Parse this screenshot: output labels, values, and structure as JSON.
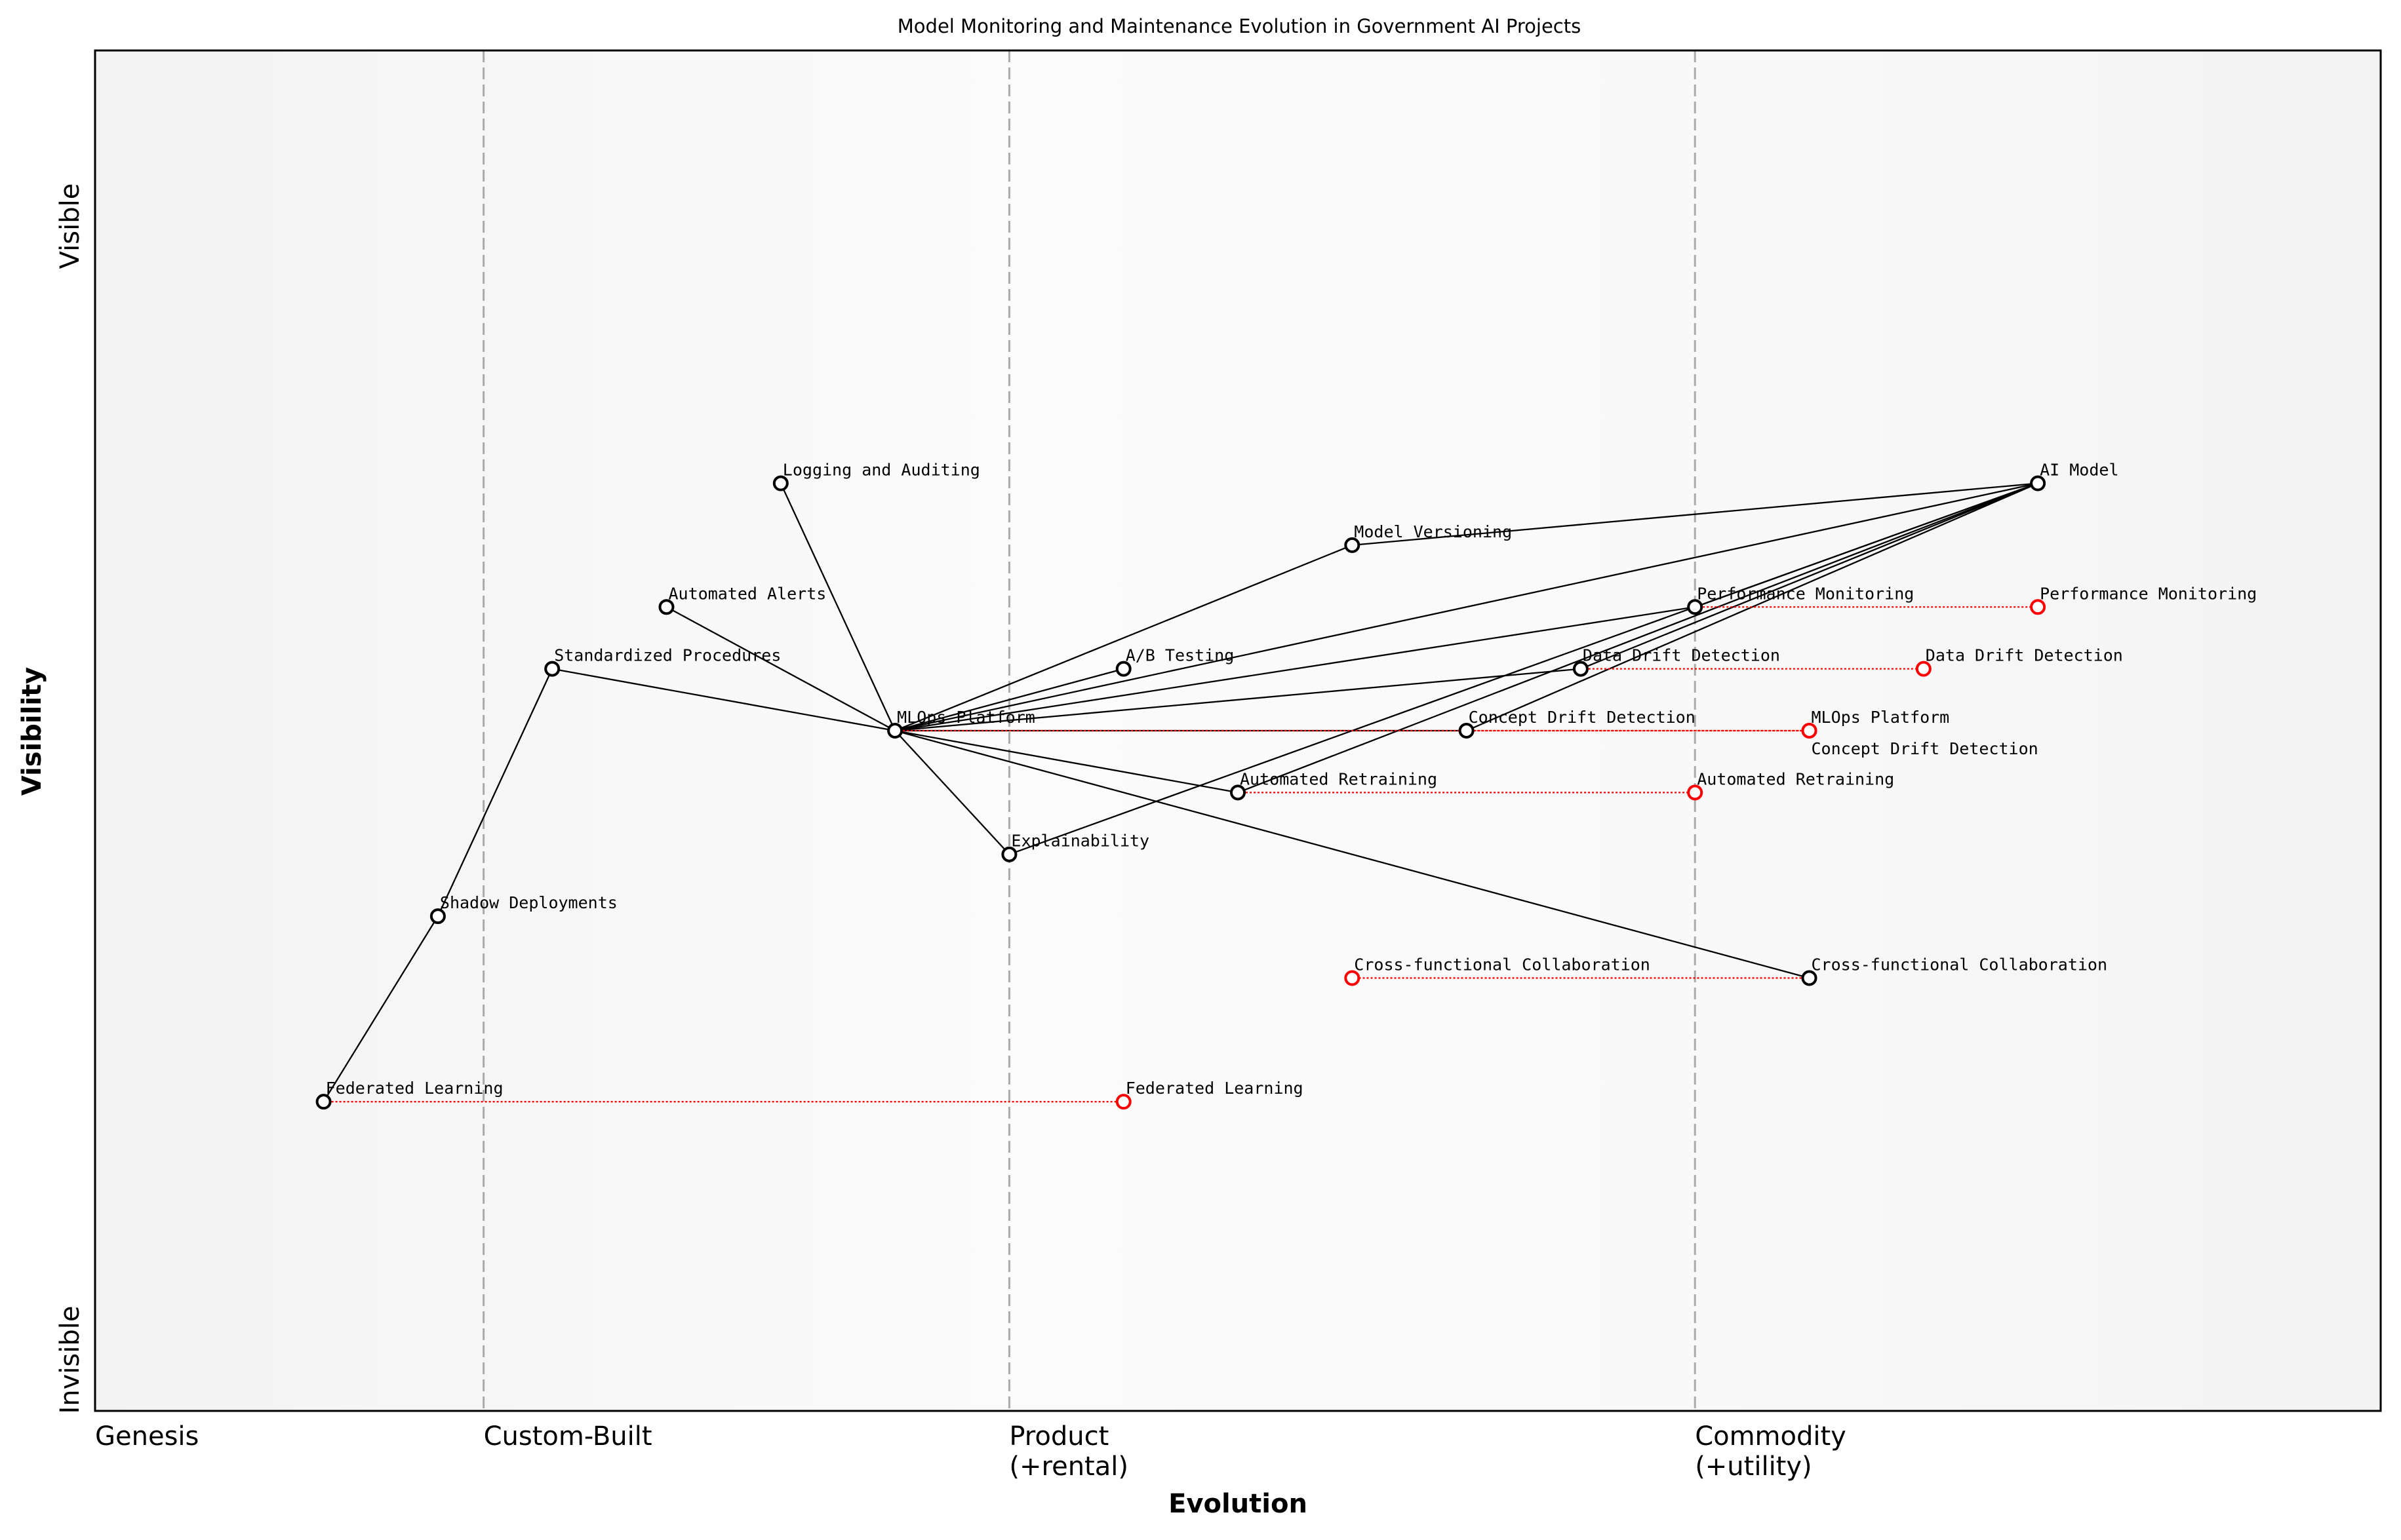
{
  "chart_data": {
    "type": "wardley-map",
    "title": "Model Monitoring and Maintenance Evolution in Government AI Projects",
    "xlabel": "Evolution",
    "ylabel": "Visibility",
    "xlim": [
      0,
      1
    ],
    "ylim": [
      0,
      1.1
    ],
    "grid": false,
    "x_ticks": [
      {
        "value": 0,
        "label": "Genesis"
      },
      {
        "value": 0.17,
        "label": "Custom-Built"
      },
      {
        "value": 0.4,
        "label": "Product\n(+rental)"
      },
      {
        "value": 0.7,
        "label": "Commodity\n(+utility)"
      }
    ],
    "stage_lines": [
      0.17,
      0.4,
      0.7
    ],
    "y_ticks": [
      {
        "label": "Visible",
        "position": "top"
      },
      {
        "label": "Invisible",
        "position": "bottom"
      }
    ],
    "colors": {
      "component": "#000000",
      "evolution": "#ff0000",
      "stage_line": "#aaaaaa"
    },
    "components": [
      {
        "name": "AI Model",
        "x": 0.85,
        "y": 0.75
      },
      {
        "name": "Model Versioning",
        "x": 0.55,
        "y": 0.7
      },
      {
        "name": "Logging and Auditing",
        "x": 0.3,
        "y": 0.75
      },
      {
        "name": "Automated Alerts",
        "x": 0.25,
        "y": 0.65
      },
      {
        "name": "Performance Monitoring",
        "x": 0.7,
        "y": 0.65
      },
      {
        "name": "Standardized Procedures",
        "x": 0.2,
        "y": 0.6
      },
      {
        "name": "A/B Testing",
        "x": 0.45,
        "y": 0.6
      },
      {
        "name": "Data Drift Detection",
        "x": 0.65,
        "y": 0.6
      },
      {
        "name": "MLOps Platform",
        "x": 0.35,
        "y": 0.55
      },
      {
        "name": "Concept Drift Detection",
        "x": 0.6,
        "y": 0.55
      },
      {
        "name": "Automated Retraining",
        "x": 0.5,
        "y": 0.5
      },
      {
        "name": "Explainability",
        "x": 0.4,
        "y": 0.45
      },
      {
        "name": "Shadow Deployments",
        "x": 0.15,
        "y": 0.4
      },
      {
        "name": "Cross-functional Collaboration",
        "x": 0.75,
        "y": 0.35
      },
      {
        "name": "Federated Learning",
        "x": 0.1,
        "y": 0.25
      }
    ],
    "links": [
      [
        "AI Model",
        "Model Versioning"
      ],
      [
        "AI Model",
        "MLOps Platform"
      ],
      [
        "AI Model",
        "Performance Monitoring"
      ],
      [
        "AI Model",
        "Data Drift Detection"
      ],
      [
        "AI Model",
        "Concept Drift Detection"
      ],
      [
        "AI Model",
        "Automated Retraining"
      ],
      [
        "AI Model",
        "Explainability"
      ],
      [
        "MLOps Platform",
        "Logging and Auditing"
      ],
      [
        "MLOps Platform",
        "Automated Alerts"
      ],
      [
        "MLOps Platform",
        "Standardized Procedures"
      ],
      [
        "MLOps Platform",
        "Model Versioning"
      ],
      [
        "MLOps Platform",
        "A/B Testing"
      ],
      [
        "MLOps Platform",
        "Performance Monitoring"
      ],
      [
        "MLOps Platform",
        "Data Drift Detection"
      ],
      [
        "MLOps Platform",
        "Concept Drift Detection"
      ],
      [
        "MLOps Platform",
        "Automated Retraining"
      ],
      [
        "MLOps Platform",
        "Explainability"
      ],
      [
        "MLOps Platform",
        "Cross-functional Collaboration"
      ],
      [
        "Standardized Procedures",
        "Shadow Deployments"
      ],
      [
        "Shadow Deployments",
        "Federated Learning"
      ]
    ],
    "evolutions": [
      {
        "name": "Performance Monitoring",
        "to_x": 0.85
      },
      {
        "name": "Data Drift Detection",
        "to_x": 0.8
      },
      {
        "name": "MLOps Platform",
        "to_x": 0.75
      },
      {
        "name": "Concept Drift Detection",
        "to_x": 0.75
      },
      {
        "name": "Automated Retraining",
        "to_x": 0.7
      },
      {
        "name": "Cross-functional Collaboration",
        "to_x": 0.55
      },
      {
        "name": "Federated Learning",
        "to_x": 0.45
      }
    ]
  }
}
